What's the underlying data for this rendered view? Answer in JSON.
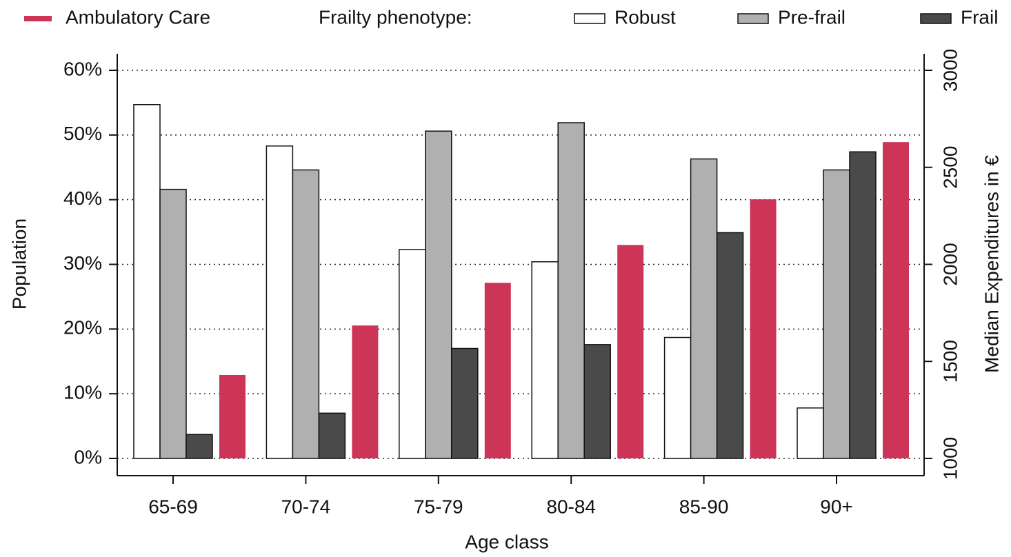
{
  "chart_data": {
    "type": "bar",
    "x_label": "Age class",
    "y_label": "Population",
    "y2_label": "Median Expenditures in €",
    "legend_title": "Frailty phenotype:",
    "categories": [
      "65-69",
      "70-74",
      "75-79",
      "80-84",
      "85-90",
      "90+"
    ],
    "series": [
      {
        "name": "Ambulatory Care",
        "color": "#cc3558",
        "axis": "y2",
        "values": [
          1430,
          1685,
          1905,
          2100,
          2335,
          2630
        ]
      },
      {
        "name": "Robust",
        "color": "#ffffff",
        "values": [
          54.7,
          48.3,
          32.3,
          30.4,
          18.7,
          7.8
        ]
      },
      {
        "name": "Pre-frail",
        "color": "#b0b0b0",
        "values": [
          41.6,
          44.6,
          50.6,
          51.9,
          46.3,
          44.6
        ]
      },
      {
        "name": "Frail",
        "color": "#4a4a4a",
        "values": [
          3.7,
          7.0,
          17.0,
          17.6,
          34.9,
          47.4
        ]
      }
    ],
    "ylim": [
      0,
      60
    ],
    "yticks": [
      {
        "value": 0,
        "label": "0%"
      },
      {
        "value": 10,
        "label": "10%"
      },
      {
        "value": 20,
        "label": "20%"
      },
      {
        "value": 30,
        "label": "30%"
      },
      {
        "value": 40,
        "label": "40%"
      },
      {
        "value": 50,
        "label": "50%"
      },
      {
        "value": 60,
        "label": "60%"
      }
    ],
    "y2lim": [
      1000,
      3000
    ],
    "y2ticks": [
      1000,
      1500,
      2000,
      2500,
      3000
    ],
    "grid": true
  }
}
